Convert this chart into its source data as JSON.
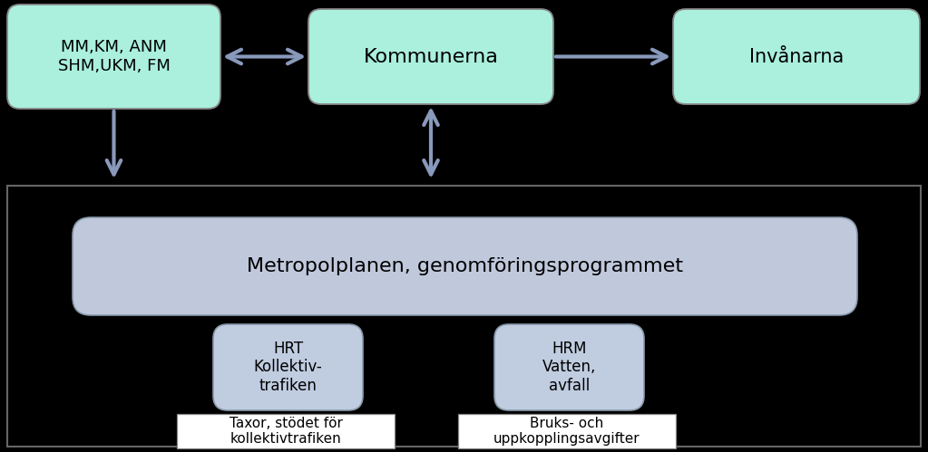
{
  "bg_color": "#000000",
  "bottom_rect_edge": "#666666",
  "box_mm_label": "MM,KM, ANM\nSHM,UKM, FM",
  "box_mm_color": "#aaf0dc",
  "box_mm_edge": "#888888",
  "box_kom_label": "Kommunerna",
  "box_kom_color": "#aaf0dc",
  "box_kom_edge": "#888888",
  "box_inv_label": "Invånarna",
  "box_inv_color": "#aaf0dc",
  "box_inv_edge": "#888888",
  "box_metro_label": "Metropolplanen, genomföringsprogrammet",
  "box_metro_color": "#c0c8dc",
  "box_metro_edge": "#8899aa",
  "box_hrt_label": "HRT\nKollektiv-\ntrafiken",
  "box_hrt_color": "#c0cce0",
  "box_hrt_edge": "#8899aa",
  "box_hrm_label": "HRM\nVatten,\navfall",
  "box_hrm_color": "#c0cce0",
  "box_hrm_edge": "#8899aa",
  "text_taxor": "Taxor, stödet för\nkollektivtrafiken",
  "text_bruks": "Bruks- och\nuppkopplingsavgifter",
  "label_color": "#000000",
  "arrow_color": "#8899bb",
  "fig_w": 10.23,
  "fig_h": 4.99,
  "dpi": 100
}
